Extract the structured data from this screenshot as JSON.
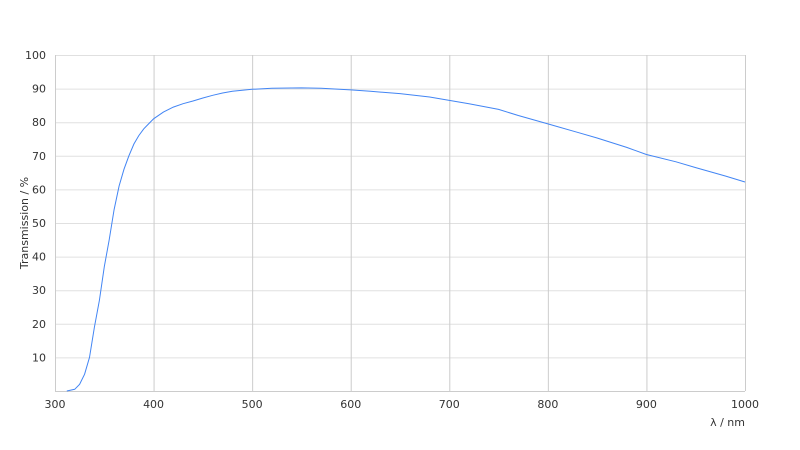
{
  "chart_data": {
    "type": "line",
    "title": "",
    "xlabel": "λ / nm",
    "ylabel": "Transmission / %",
    "xlim": [
      300,
      1000
    ],
    "ylim": [
      0,
      100
    ],
    "xticks": [
      300,
      400,
      500,
      600,
      700,
      800,
      900,
      1000
    ],
    "yticks": [
      10,
      20,
      30,
      40,
      50,
      60,
      70,
      80,
      90,
      100
    ],
    "grid": true,
    "legend": "none",
    "colors": {
      "line": "#4285f4",
      "grid_major": "#cccccc",
      "grid_minor": "#e0e0e0"
    },
    "series": [
      {
        "x": [
          312,
          320,
          325,
          330,
          335,
          340,
          345,
          350,
          355,
          360,
          365,
          370,
          375,
          380,
          385,
          390,
          395,
          400,
          410,
          420,
          430,
          440,
          450,
          460,
          470,
          480,
          490,
          500,
          520,
          550,
          570,
          600,
          620,
          650,
          680,
          700,
          720,
          750,
          770,
          800,
          830,
          850,
          880,
          900,
          930,
          950,
          980,
          1000
        ],
        "y": [
          0,
          0.5,
          2,
          5,
          10,
          19,
          27,
          37,
          45,
          54,
          61,
          66,
          70,
          73.5,
          76,
          78,
          79.5,
          81,
          83,
          84.5,
          85.5,
          86.3,
          87.2,
          88,
          88.7,
          89.2,
          89.5,
          89.8,
          90.1,
          90.2,
          90.1,
          89.6,
          89.2,
          88.5,
          87.5,
          86.5,
          85.5,
          83.8,
          82,
          79.5,
          77,
          75.3,
          72.5,
          70.4,
          68.2,
          66.5,
          64,
          62.2
        ]
      }
    ]
  }
}
